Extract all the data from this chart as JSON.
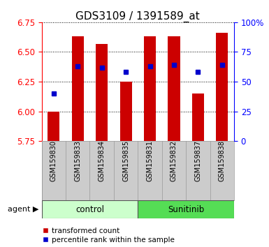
{
  "title": "GDS3109 / 1391589_at",
  "samples": [
    "GSM159830",
    "GSM159833",
    "GSM159834",
    "GSM159835",
    "GSM159831",
    "GSM159832",
    "GSM159837",
    "GSM159838"
  ],
  "groups": [
    "control",
    "control",
    "control",
    "control",
    "Sunitinib",
    "Sunitinib",
    "Sunitinib",
    "Sunitinib"
  ],
  "bar_values": [
    6.0,
    6.63,
    6.57,
    6.25,
    6.63,
    6.63,
    6.15,
    6.66
  ],
  "bar_base": 5.75,
  "blue_values_pct": [
    40,
    63,
    62,
    58,
    63,
    64,
    58,
    64
  ],
  "ylim_left": [
    5.75,
    6.75
  ],
  "ylim_right": [
    0,
    100
  ],
  "yticks_left": [
    5.75,
    6.0,
    6.25,
    6.5,
    6.75
  ],
  "yticks_right": [
    0,
    25,
    50,
    75,
    100
  ],
  "ytick_labels_right": [
    "0",
    "25",
    "50",
    "75",
    "100%"
  ],
  "bar_color": "#cc0000",
  "blue_color": "#0000cc",
  "group_colors": {
    "control": "#ccffcc",
    "Sunitinib": "#55dd55"
  },
  "background_color": "#ffffff",
  "title_fontsize": 11
}
